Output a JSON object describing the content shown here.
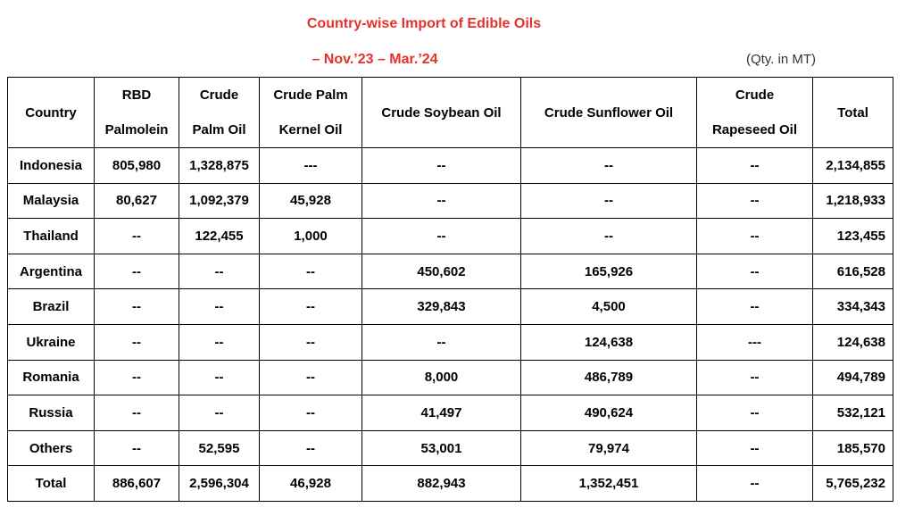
{
  "header": {
    "title": "Country-wise Import of Edible Oils",
    "subtitle": "– Nov.’23 – Mar.’24",
    "unit": "(Qty. in MT)"
  },
  "table": {
    "columns": [
      [
        "Country"
      ],
      [
        "RBD",
        "Palmolein"
      ],
      [
        "Crude",
        "Palm Oil"
      ],
      [
        "Crude Palm",
        "Kernel Oil"
      ],
      [
        "Crude Soybean Oil"
      ],
      [
        "Crude Sunflower Oil"
      ],
      [
        "Crude",
        "Rapeseed Oil"
      ],
      [
        "Total"
      ]
    ],
    "rows": [
      [
        "Indonesia",
        "805,980",
        "1,328,875",
        "---",
        "--",
        "--",
        "--",
        "2,134,855"
      ],
      [
        "Malaysia",
        "80,627",
        "1,092,379",
        "45,928",
        "--",
        "--",
        "--",
        "1,218,933"
      ],
      [
        "Thailand",
        "--",
        "122,455",
        "1,000",
        "--",
        "--",
        "--",
        "123,455"
      ],
      [
        "Argentina",
        "--",
        "--",
        "--",
        "450,602",
        "165,926",
        "--",
        "616,528"
      ],
      [
        "Brazil",
        "--",
        "--",
        "--",
        "329,843",
        "4,500",
        "--",
        "334,343"
      ],
      [
        "Ukraine",
        "--",
        "--",
        "--",
        "--",
        "124,638",
        "---",
        "124,638"
      ],
      [
        "Romania",
        "--",
        "--",
        "--",
        "8,000",
        "486,789",
        "--",
        "494,789"
      ],
      [
        "Russia",
        "--",
        "--",
        "--",
        "41,497",
        "490,624",
        "--",
        "532,121"
      ],
      [
        "Others",
        "--",
        "52,595",
        "--",
        "53,001",
        "79,974",
        "--",
        "185,570"
      ],
      [
        "Total",
        "886,607",
        "2,596,304",
        "46,928",
        "882,943",
        "1,352,451",
        "--",
        "5,765,232"
      ]
    ]
  }
}
